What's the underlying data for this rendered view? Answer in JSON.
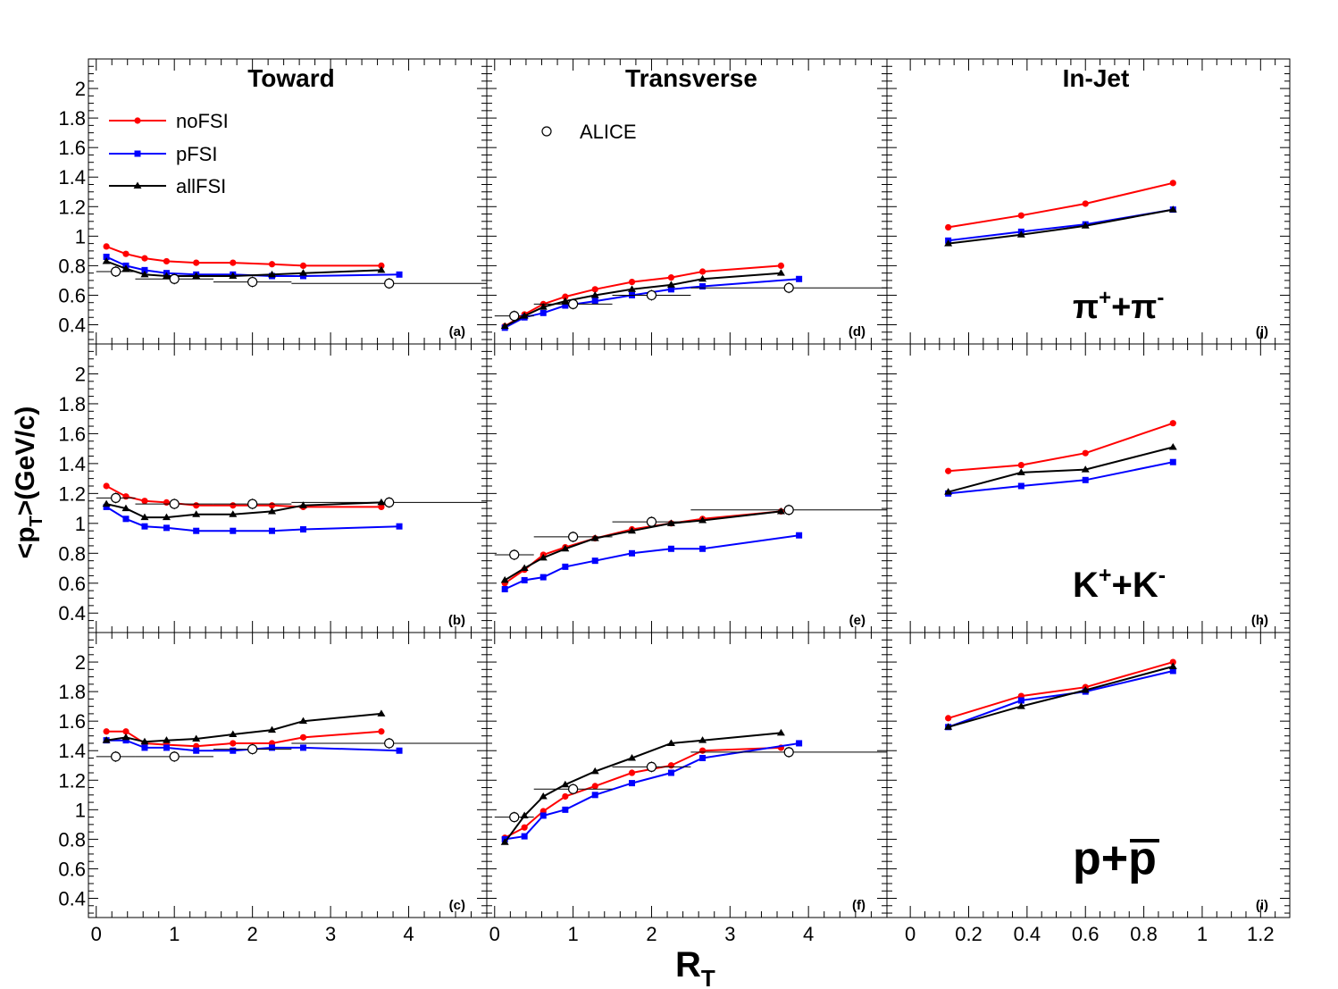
{
  "figure": {
    "ylabel": "<p",
    "ylabel_sub": "T",
    "ylabel_tail": ">(GeV/c)",
    "xlabel": "R",
    "xlabel_sub": "T",
    "columns": [
      "Toward",
      "Transverse",
      "In-Jet"
    ],
    "species": {
      "pi": {
        "base": "π",
        "sup1": "+",
        "mid": "+π",
        "sup2": "-"
      },
      "k": {
        "base": "K",
        "sup1": "+",
        "mid": "+K",
        "sup2": "-"
      },
      "p": {
        "base": "p+",
        "bar": "p"
      }
    },
    "legend": {
      "nofsi": "noFSI",
      "pfsi": "pFSI",
      "allfsi": "allFSI",
      "alice": "ALICE"
    },
    "colors": {
      "nofsi": "#ff0000",
      "pfsi": "#0000ff",
      "allfsi": "#000000",
      "alice": "#000000"
    },
    "ytick_labels": [
      "0.4",
      "0.6",
      "0.8",
      "1",
      "1.2",
      "1.4",
      "1.6",
      "1.8",
      "2"
    ],
    "xtick_labels_rt": [
      "0",
      "1",
      "2",
      "3",
      "4"
    ],
    "xtick_labels_jet": [
      "0",
      "0.2",
      "0.4",
      "0.6",
      "0.8",
      "1",
      "1.2"
    ]
  },
  "chart_data": [
    {
      "id": "a",
      "label": "(a)",
      "type": "line",
      "region": "Toward",
      "species": "pi",
      "xlim": [
        -0.1,
        5
      ],
      "ylim": [
        0.27,
        2.2
      ],
      "series": [
        {
          "name": "noFSI",
          "x": [
            0.13,
            0.38,
            0.62,
            0.9,
            1.28,
            1.75,
            2.25,
            2.65,
            3.65
          ],
          "y": [
            0.93,
            0.88,
            0.85,
            0.83,
            0.82,
            0.82,
            0.81,
            0.8,
            0.8
          ]
        },
        {
          "name": "pFSI",
          "x": [
            0.13,
            0.38,
            0.62,
            0.9,
            1.28,
            1.75,
            2.25,
            2.65,
            3.88
          ],
          "y": [
            0.86,
            0.8,
            0.77,
            0.75,
            0.74,
            0.74,
            0.73,
            0.73,
            0.74
          ]
        },
        {
          "name": "allFSI",
          "x": [
            0.13,
            0.38,
            0.62,
            0.9,
            1.28,
            1.75,
            2.25,
            2.65,
            3.65
          ],
          "y": [
            0.83,
            0.78,
            0.74,
            0.73,
            0.73,
            0.73,
            0.74,
            0.75,
            0.77
          ]
        },
        {
          "name": "ALICE",
          "x": [
            0.25,
            1.0,
            2.0,
            3.75
          ],
          "y": [
            0.76,
            0.71,
            0.69,
            0.68
          ],
          "xerr": [
            0.25,
            0.5,
            0.5,
            1.25
          ]
        }
      ]
    },
    {
      "id": "b",
      "label": "(b)",
      "type": "line",
      "region": "Toward",
      "species": "k",
      "xlim": [
        -0.1,
        5
      ],
      "ylim": [
        0.27,
        2.2
      ],
      "series": [
        {
          "name": "noFSI",
          "x": [
            0.13,
            0.38,
            0.62,
            0.9,
            1.28,
            1.75,
            2.25,
            2.65,
            3.65
          ],
          "y": [
            1.25,
            1.18,
            1.15,
            1.14,
            1.12,
            1.12,
            1.12,
            1.11,
            1.11
          ]
        },
        {
          "name": "pFSI",
          "x": [
            0.13,
            0.38,
            0.62,
            0.9,
            1.28,
            1.75,
            2.25,
            2.65,
            3.88
          ],
          "y": [
            1.11,
            1.03,
            0.98,
            0.97,
            0.95,
            0.95,
            0.95,
            0.96,
            0.98
          ]
        },
        {
          "name": "allFSI",
          "x": [
            0.13,
            0.38,
            0.62,
            0.9,
            1.28,
            1.75,
            2.25,
            2.65,
            3.65
          ],
          "y": [
            1.13,
            1.1,
            1.04,
            1.04,
            1.06,
            1.06,
            1.08,
            1.12,
            1.14
          ]
        },
        {
          "name": "ALICE",
          "x": [
            0.25,
            1.0,
            2.0,
            3.75
          ],
          "y": [
            1.17,
            1.13,
            1.13,
            1.14
          ],
          "xerr": [
            0.25,
            0.5,
            0.5,
            1.25
          ]
        }
      ]
    },
    {
      "id": "c",
      "label": "(c)",
      "type": "line",
      "region": "Toward",
      "species": "p",
      "xlim": [
        -0.1,
        5
      ],
      "ylim": [
        0.27,
        2.2
      ],
      "series": [
        {
          "name": "noFSI",
          "x": [
            0.13,
            0.38,
            0.62,
            0.9,
            1.28,
            1.75,
            2.25,
            2.65,
            3.65
          ],
          "y": [
            1.53,
            1.53,
            1.45,
            1.44,
            1.43,
            1.45,
            1.45,
            1.49,
            1.53
          ]
        },
        {
          "name": "pFSI",
          "x": [
            0.13,
            0.38,
            0.62,
            0.9,
            1.28,
            1.75,
            2.25,
            2.65,
            3.88
          ],
          "y": [
            1.47,
            1.47,
            1.42,
            1.42,
            1.4,
            1.4,
            1.42,
            1.42,
            1.4
          ]
        },
        {
          "name": "allFSI",
          "x": [
            0.13,
            0.38,
            0.62,
            0.9,
            1.28,
            1.75,
            2.25,
            2.65,
            3.65
          ],
          "y": [
            1.47,
            1.49,
            1.46,
            1.47,
            1.48,
            1.51,
            1.54,
            1.6,
            1.65
          ]
        },
        {
          "name": "ALICE",
          "x": [
            0.25,
            1.0,
            2.0,
            3.75
          ],
          "y": [
            1.36,
            1.36,
            1.41,
            1.45
          ],
          "xerr": [
            0.25,
            0.5,
            0.5,
            1.25
          ]
        }
      ]
    },
    {
      "id": "d",
      "label": "(d)",
      "type": "line",
      "region": "Transverse",
      "species": "pi",
      "xlim": [
        -0.1,
        5
      ],
      "ylim": [
        0.27,
        2.2
      ],
      "series": [
        {
          "name": "noFSI",
          "x": [
            0.13,
            0.38,
            0.62,
            0.9,
            1.28,
            1.75,
            2.25,
            2.65,
            3.65
          ],
          "y": [
            0.39,
            0.47,
            0.54,
            0.59,
            0.64,
            0.69,
            0.72,
            0.76,
            0.8
          ]
        },
        {
          "name": "pFSI",
          "x": [
            0.13,
            0.38,
            0.62,
            0.9,
            1.28,
            1.75,
            2.25,
            2.65,
            3.88
          ],
          "y": [
            0.38,
            0.45,
            0.48,
            0.53,
            0.56,
            0.6,
            0.64,
            0.66,
            0.71
          ]
        },
        {
          "name": "allFSI",
          "x": [
            0.13,
            0.38,
            0.62,
            0.9,
            1.28,
            1.75,
            2.25,
            2.65,
            3.65
          ],
          "y": [
            0.39,
            0.46,
            0.52,
            0.56,
            0.6,
            0.64,
            0.67,
            0.71,
            0.75
          ]
        },
        {
          "name": "ALICE",
          "x": [
            0.25,
            1.0,
            2.0,
            3.75
          ],
          "y": [
            0.46,
            0.54,
            0.6,
            0.65
          ],
          "xerr": [
            0.25,
            0.5,
            0.5,
            1.25
          ]
        }
      ]
    },
    {
      "id": "e",
      "label": "(e)",
      "type": "line",
      "region": "Transverse",
      "species": "k",
      "xlim": [
        -0.1,
        5
      ],
      "ylim": [
        0.27,
        2.2
      ],
      "series": [
        {
          "name": "noFSI",
          "x": [
            0.13,
            0.38,
            0.62,
            0.9,
            1.28,
            1.75,
            2.25,
            2.65,
            3.65
          ],
          "y": [
            0.6,
            0.69,
            0.79,
            0.84,
            0.9,
            0.96,
            1.0,
            1.03,
            1.08
          ]
        },
        {
          "name": "pFSI",
          "x": [
            0.13,
            0.38,
            0.62,
            0.9,
            1.28,
            1.75,
            2.25,
            2.65,
            3.88
          ],
          "y": [
            0.56,
            0.62,
            0.64,
            0.71,
            0.75,
            0.8,
            0.83,
            0.83,
            0.92
          ]
        },
        {
          "name": "allFSI",
          "x": [
            0.13,
            0.38,
            0.62,
            0.9,
            1.28,
            1.75,
            2.25,
            2.65,
            3.65
          ],
          "y": [
            0.62,
            0.7,
            0.77,
            0.83,
            0.9,
            0.95,
            1.0,
            1.02,
            1.08
          ]
        },
        {
          "name": "ALICE",
          "x": [
            0.25,
            1.0,
            2.0,
            3.75
          ],
          "y": [
            0.79,
            0.91,
            1.01,
            1.09
          ],
          "xerr": [
            0.25,
            0.5,
            0.5,
            1.25
          ]
        }
      ]
    },
    {
      "id": "f",
      "label": "(f)",
      "type": "line",
      "region": "Transverse",
      "species": "p",
      "xlim": [
        -0.1,
        5
      ],
      "ylim": [
        0.27,
        2.2
      ],
      "series": [
        {
          "name": "noFSI",
          "x": [
            0.13,
            0.38,
            0.62,
            0.9,
            1.28,
            1.75,
            2.25,
            2.65,
            3.65
          ],
          "y": [
            0.81,
            0.88,
            0.99,
            1.09,
            1.16,
            1.25,
            1.3,
            1.4,
            1.42
          ]
        },
        {
          "name": "pFSI",
          "x": [
            0.13,
            0.38,
            0.62,
            0.9,
            1.28,
            1.75,
            2.25,
            2.65,
            3.88
          ],
          "y": [
            0.8,
            0.82,
            0.96,
            1.0,
            1.1,
            1.18,
            1.25,
            1.35,
            1.45
          ]
        },
        {
          "name": "allFSI",
          "x": [
            0.13,
            0.38,
            0.62,
            0.9,
            1.28,
            1.75,
            2.25,
            2.65,
            3.65
          ],
          "y": [
            0.78,
            0.96,
            1.09,
            1.17,
            1.26,
            1.35,
            1.45,
            1.47,
            1.52
          ]
        },
        {
          "name": "ALICE",
          "x": [
            0.25,
            1.0,
            2.0,
            3.75
          ],
          "y": [
            0.95,
            1.14,
            1.29,
            1.39
          ],
          "xerr": [
            0.25,
            0.5,
            0.5,
            1.25
          ]
        }
      ]
    },
    {
      "id": "j",
      "label": "(j)",
      "type": "line",
      "region": "In-Jet",
      "species": "pi",
      "xlim": [
        -0.08,
        1.3
      ],
      "ylim": [
        0.27,
        2.2
      ],
      "series": [
        {
          "name": "noFSI",
          "x": [
            0.13,
            0.38,
            0.6,
            0.9
          ],
          "y": [
            1.06,
            1.14,
            1.22,
            1.36
          ]
        },
        {
          "name": "pFSI",
          "x": [
            0.13,
            0.38,
            0.6,
            0.9
          ],
          "y": [
            0.97,
            1.03,
            1.08,
            1.18
          ]
        },
        {
          "name": "allFSI",
          "x": [
            0.13,
            0.38,
            0.6,
            0.9
          ],
          "y": [
            0.95,
            1.01,
            1.07,
            1.18
          ]
        }
      ]
    },
    {
      "id": "h",
      "label": "(h)",
      "type": "line",
      "region": "In-Jet",
      "species": "k",
      "xlim": [
        -0.08,
        1.3
      ],
      "ylim": [
        0.27,
        2.2
      ],
      "series": [
        {
          "name": "noFSI",
          "x": [
            0.13,
            0.38,
            0.6,
            0.9
          ],
          "y": [
            1.35,
            1.39,
            1.47,
            1.67
          ]
        },
        {
          "name": "pFSI",
          "x": [
            0.13,
            0.38,
            0.6,
            0.9
          ],
          "y": [
            1.2,
            1.25,
            1.29,
            1.41
          ]
        },
        {
          "name": "allFSI",
          "x": [
            0.13,
            0.38,
            0.6,
            0.9
          ],
          "y": [
            1.21,
            1.34,
            1.36,
            1.51
          ]
        }
      ]
    },
    {
      "id": "i",
      "label": "(i)",
      "type": "line",
      "region": "In-Jet",
      "species": "p",
      "xlim": [
        -0.08,
        1.3
      ],
      "ylim": [
        0.27,
        2.2
      ],
      "series": [
        {
          "name": "noFSI",
          "x": [
            0.13,
            0.38,
            0.6,
            0.9
          ],
          "y": [
            1.62,
            1.77,
            1.83,
            2.0
          ]
        },
        {
          "name": "pFSI",
          "x": [
            0.13,
            0.38,
            0.6,
            0.9
          ],
          "y": [
            1.56,
            1.74,
            1.8,
            1.94
          ]
        },
        {
          "name": "allFSI",
          "x": [
            0.13,
            0.38,
            0.6,
            0.9
          ],
          "y": [
            1.56,
            1.7,
            1.81,
            1.97
          ]
        }
      ]
    }
  ]
}
